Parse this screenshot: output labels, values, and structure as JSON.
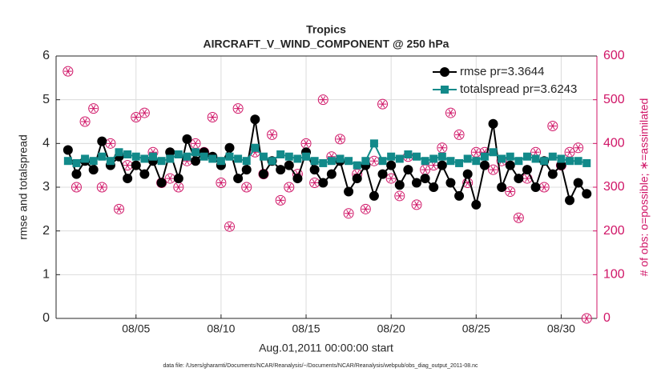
{
  "chart_data": {
    "type": "line",
    "title": "Tropics",
    "subtitle": "AIRCRAFT_V_WIND_COMPONENT @ 250 hPa",
    "ylabel": "rmse and totalspread",
    "y2label": "# of obs: o=possible; ∗=assimilated",
    "xlabel": "Aug.01,2011 00:00:00 start",
    "footnote": "data file: /Users/gharamti/Documents/NCAR/Reanalysis/~/Documents/NCAR/Reanalysis/webpub/obs_diag_output_2011-08.nc",
    "x": [
      1,
      1.5,
      2,
      2.5,
      3,
      3.5,
      4,
      4.5,
      5,
      5.5,
      6,
      6.5,
      7,
      7.5,
      8,
      8.5,
      9,
      9.5,
      10,
      10.5,
      11,
      11.5,
      12,
      12.5,
      13,
      13.5,
      14,
      14.5,
      15,
      15.5,
      16,
      16.5,
      17,
      17.5,
      18,
      18.5,
      19,
      19.5,
      20,
      20.5,
      21,
      21.5,
      22,
      22.5,
      23,
      23.5,
      24,
      24.5,
      25,
      25.5,
      26,
      26.5,
      27,
      27.5,
      28,
      28.5,
      29,
      29.5,
      30,
      30.5,
      31,
      31.5
    ],
    "xlim": [
      0.3,
      32.1
    ],
    "xticks": [
      {
        "value": 5,
        "label": "08/05"
      },
      {
        "value": 10,
        "label": "08/10"
      },
      {
        "value": 15,
        "label": "08/15"
      },
      {
        "value": 20,
        "label": "08/20"
      },
      {
        "value": 25,
        "label": "08/25"
      },
      {
        "value": 30,
        "label": "08/30"
      }
    ],
    "ylim": [
      0,
      6
    ],
    "yticks": [
      0,
      1,
      2,
      3,
      4,
      5,
      6
    ],
    "y2lim": [
      0,
      600
    ],
    "y2ticks": [
      0,
      100,
      200,
      300,
      400,
      500,
      600
    ],
    "y2color": "#d01567",
    "grid": true,
    "legend": "northeast",
    "series": [
      {
        "name": "rmse pr=3.3644",
        "color": "#000000",
        "marker": "circle",
        "values": [
          3.85,
          3.3,
          3.6,
          3.4,
          4.05,
          3.5,
          3.7,
          3.2,
          3.5,
          3.3,
          3.6,
          3.1,
          3.8,
          3.2,
          4.1,
          3.6,
          3.8,
          3.7,
          3.5,
          3.9,
          3.2,
          3.4,
          4.55,
          3.3,
          3.6,
          3.4,
          3.5,
          3.2,
          3.8,
          3.4,
          3.1,
          3.3,
          3.6,
          2.9,
          3.2,
          3.5,
          2.8,
          3.3,
          3.5,
          3.05,
          3.4,
          3.1,
          3.2,
          3.0,
          3.5,
          3.1,
          2.8,
          3.3,
          2.6,
          3.5,
          4.45,
          3.0,
          3.5,
          3.2,
          3.4,
          3.0,
          3.6,
          3.3,
          3.5,
          2.7,
          3.1,
          2.85
        ]
      },
      {
        "name": "totalspread pr=3.6243",
        "color": "#128a8a",
        "marker": "square",
        "values": [
          3.6,
          3.55,
          3.65,
          3.6,
          3.7,
          3.6,
          3.8,
          3.75,
          3.7,
          3.65,
          3.7,
          3.6,
          3.65,
          3.75,
          3.7,
          3.8,
          3.7,
          3.65,
          3.6,
          3.7,
          3.65,
          3.6,
          3.9,
          3.7,
          3.6,
          3.75,
          3.7,
          3.65,
          3.7,
          3.6,
          3.55,
          3.6,
          3.65,
          3.6,
          3.5,
          3.6,
          4.0,
          3.6,
          3.7,
          3.65,
          3.75,
          3.7,
          3.6,
          3.65,
          3.7,
          3.6,
          3.55,
          3.65,
          3.6,
          3.7,
          3.8,
          3.65,
          3.7,
          3.6,
          3.7,
          3.65,
          3.6,
          3.7,
          3.65,
          3.6,
          3.6,
          3.55
        ]
      },
      {
        "color": "#d01567",
        "marker": "open-circle",
        "axis": "y2",
        "values": [
          565,
          300,
          450,
          480,
          300,
          400,
          250,
          350,
          460,
          470,
          380,
          310,
          320,
          300,
          360,
          400,
          380,
          460,
          310,
          210,
          480,
          300,
          380,
          330,
          420,
          270,
          300,
          330,
          400,
          310,
          500,
          370,
          410,
          240,
          330,
          250,
          360,
          490,
          320,
          280,
          370,
          260,
          340,
          350,
          390,
          470,
          420,
          310,
          380,
          380,
          340,
          360,
          290,
          230,
          320,
          380,
          300,
          440,
          350,
          380,
          390,
          0
        ]
      },
      {
        "color": "#d01567",
        "marker": "asterisk",
        "axis": "y2",
        "values": [
          565,
          300,
          450,
          480,
          300,
          400,
          250,
          350,
          460,
          470,
          380,
          310,
          320,
          300,
          360,
          400,
          380,
          460,
          310,
          210,
          480,
          300,
          380,
          330,
          420,
          270,
          300,
          330,
          400,
          310,
          500,
          370,
          410,
          240,
          330,
          250,
          360,
          490,
          320,
          280,
          370,
          260,
          340,
          350,
          390,
          470,
          420,
          310,
          380,
          380,
          340,
          360,
          290,
          230,
          320,
          380,
          300,
          440,
          350,
          380,
          390,
          0
        ]
      }
    ]
  }
}
